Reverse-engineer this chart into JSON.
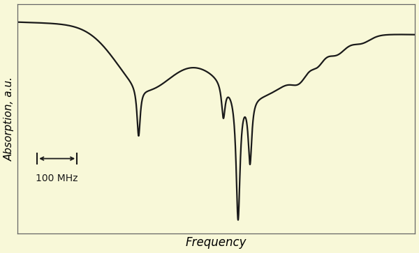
{
  "background_color": "#f8f8d8",
  "line_color": "#1a1a1a",
  "xlabel": "Frequency",
  "ylabel": "Absorption, a.u.",
  "scale_label": "100 MHz",
  "line_width": 1.6,
  "xlabel_fontsize": 12,
  "ylabel_fontsize": 11
}
